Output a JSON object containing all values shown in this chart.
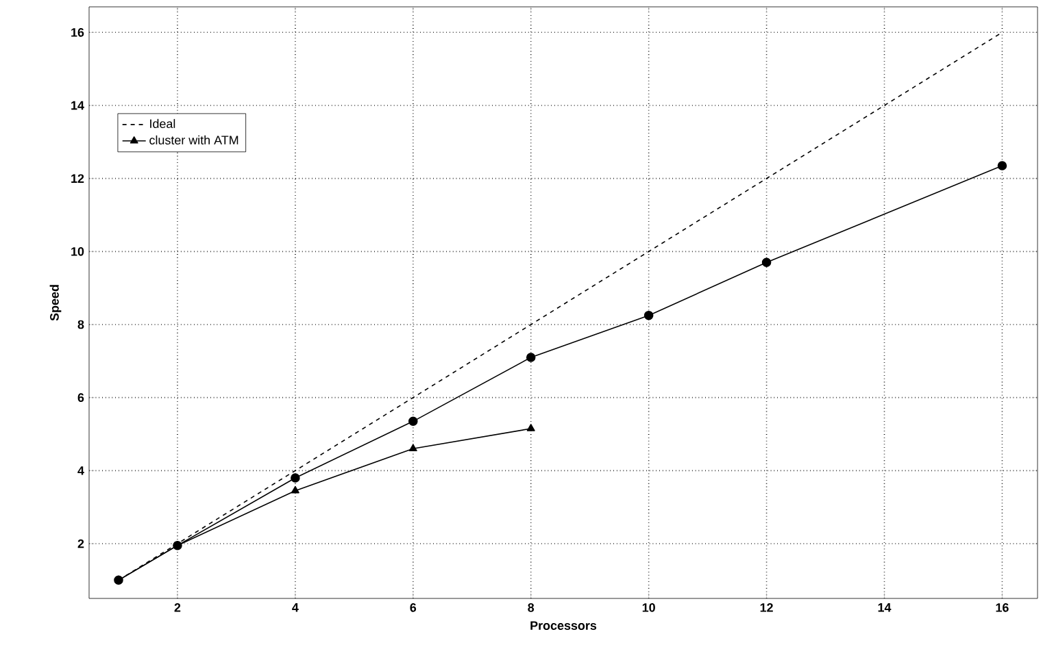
{
  "chart_data": {
    "type": "line",
    "xlabel": "Processors",
    "ylabel": "Speed",
    "xlim": [
      0.5,
      16.6
    ],
    "ylim": [
      0.5,
      16.7
    ],
    "xticks": [
      2,
      4,
      6,
      8,
      10,
      12,
      14,
      16
    ],
    "yticks": [
      2,
      4,
      6,
      8,
      10,
      12,
      14,
      16
    ],
    "grid": true,
    "legend": "top left",
    "series": [
      {
        "color": "#000000",
        "x": [
          1,
          2,
          4,
          6,
          8,
          10,
          12,
          16
        ],
        "values": [
          1,
          1.95,
          3.8,
          5.35,
          7.1,
          8.25,
          9.7,
          12.35
        ],
        "line_style": "solid",
        "marker": "circle"
      },
      {
        "name": "cluster with ATM",
        "color": "#000000",
        "x": [
          1,
          2,
          4,
          6,
          8
        ],
        "values": [
          1,
          1.95,
          3.45,
          4.6,
          5.15
        ],
        "line_style": "solid",
        "marker": "triangle"
      },
      {
        "name": "Ideal",
        "color": "#000000",
        "x": [
          1,
          16
        ],
        "values": [
          1,
          16
        ],
        "line_style": "dashed",
        "marker": "none"
      }
    ]
  }
}
